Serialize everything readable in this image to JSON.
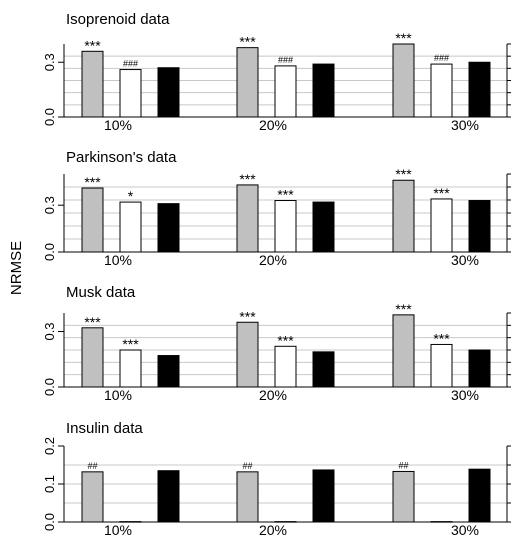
{
  "chart_data": {
    "type": "bar",
    "ylabel": "NRMSE",
    "categories": [
      "10%",
      "20%",
      "30%"
    ],
    "colors": {
      "s1": "#c0c0c0",
      "s2": "#ffffff",
      "s3": "#000000",
      "grid": "#c8c8c8"
    },
    "panels": [
      {
        "title": "Isoprenoid data",
        "ylim": [
          0,
          0.4
        ],
        "yticks": [
          "0.0",
          "0.3"
        ],
        "series": [
          {
            "values": [
              0.36,
              0.38,
              0.4
            ],
            "labels": [
              "***",
              "***",
              "***"
            ]
          },
          {
            "values": [
              0.26,
              0.28,
              0.29
            ],
            "labels": [
              "###",
              "###",
              "###"
            ]
          },
          {
            "values": [
              0.27,
              0.29,
              0.3
            ],
            "labels": [
              "",
              "",
              ""
            ]
          }
        ]
      },
      {
        "title": "Parkinson's data",
        "ylim": [
          0,
          0.5
        ],
        "yticks": [
          "0.0",
          "0.3"
        ],
        "series": [
          {
            "values": [
              0.41,
              0.43,
              0.46
            ],
            "labels": [
              "***",
              "***",
              "***"
            ]
          },
          {
            "values": [
              0.32,
              0.33,
              0.34
            ],
            "labels": [
              "*",
              "***",
              "***"
            ]
          },
          {
            "values": [
              0.31,
              0.32,
              0.33
            ],
            "labels": [
              "",
              "",
              ""
            ]
          }
        ]
      },
      {
        "title": "Musk data",
        "ylim": [
          0,
          0.4
        ],
        "yticks": [
          "0.0",
          "0.3"
        ],
        "series": [
          {
            "values": [
              0.32,
              0.35,
              0.39
            ],
            "labels": [
              "***",
              "***",
              "***"
            ]
          },
          {
            "values": [
              0.2,
              0.22,
              0.23
            ],
            "labels": [
              "***",
              "***",
              "***"
            ]
          },
          {
            "values": [
              0.17,
              0.19,
              0.2
            ],
            "labels": [
              "",
              "",
              ""
            ]
          }
        ]
      },
      {
        "title": "Insulin data",
        "ylim": [
          0,
          0.2
        ],
        "yticks": [
          "0.0",
          "0.1",
          "0.2"
        ],
        "series": [
          {
            "values": [
              0.132,
              0.132,
              0.133
            ],
            "labels": [
              "##",
              "##",
              "##"
            ]
          },
          {
            "values": [
              0.001,
              0.001,
              0.001
            ],
            "labels": [
              "",
              "",
              ""
            ]
          },
          {
            "values": [
              0.135,
              0.137,
              0.139
            ],
            "labels": [
              "",
              "",
              ""
            ]
          }
        ]
      }
    ]
  }
}
